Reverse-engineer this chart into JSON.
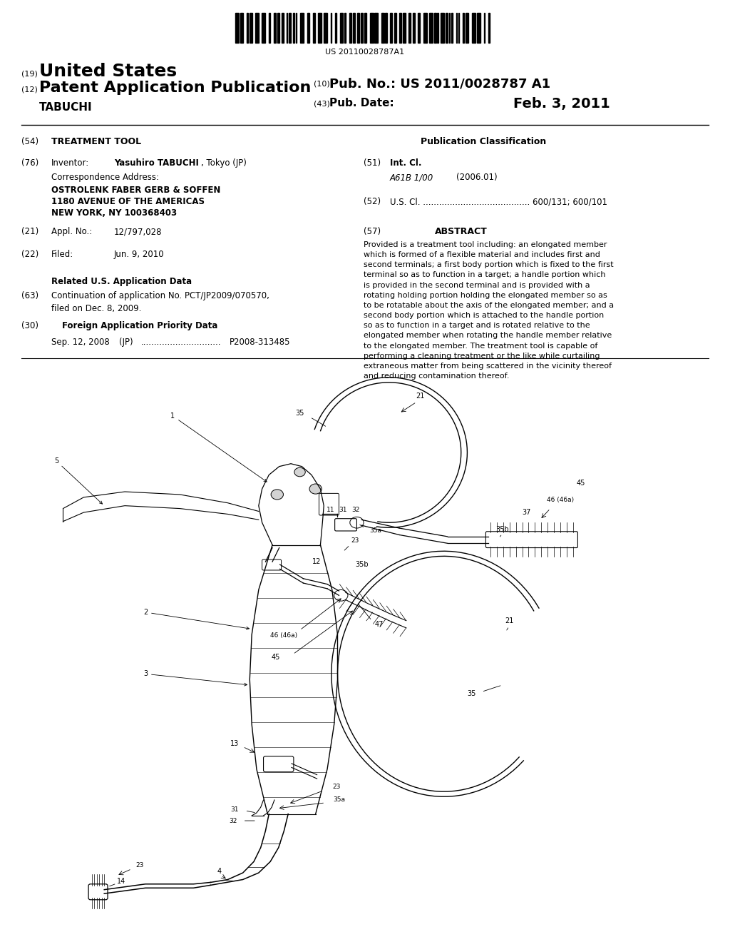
{
  "background_color": "#ffffff",
  "barcode_text": "US 20110028787A1",
  "tag19": "(19)",
  "united_states": "United States",
  "tag12": "(12)",
  "patent_app_pub": "Patent Application Publication",
  "tabuchi": "TABUCHI",
  "tag10": "(10)",
  "pub_no_label": "Pub. No.:",
  "pub_no_value": "US 2011/0028787 A1",
  "tag43": "(43)",
  "pub_date_label": "Pub. Date:",
  "pub_date_value": "Feb. 3, 2011",
  "tag54": "(54)",
  "treatment_tool": "TREATMENT TOOL",
  "pub_class_header": "Publication Classification",
  "tag51": "(51)",
  "int_cl_label": "Int. Cl.",
  "int_cl_code": "A61B 1/00",
  "int_cl_year": "(2006.01)",
  "tag52": "(52)",
  "us_cl_label": "U.S. Cl.",
  "us_cl_dots": "........................................",
  "us_cl_value": "600/131; 600/101",
  "tag57": "(57)",
  "abstract_header": "ABSTRACT",
  "abstract_text": "Provided is a treatment tool including: an elongated member\nwhich is formed of a flexible material and includes first and\nsecond terminals; a first body portion which is fixed to the first\nterminal so as to function in a target; a handle portion which\nis provided in the second terminal and is provided with a\nrotating holding portion holding the elongated member so as\nto be rotatable about the axis of the elongated member; and a\nsecond body portion which is attached to the handle portion\nso as to function in a target and is rotated relative to the\nelongated member when rotating the handle member relative\nto the elongated member. The treatment tool is capable of\nperforming a cleaning treatment or the like while curtailing\nextraneous matter from being scattered in the vicinity thereof\nand reducing contamination thereof.",
  "tag76": "(76)",
  "inventor_label": "Inventor:",
  "inventor_name": "Yasuhiro TABUCHI",
  "inventor_loc": ", Tokyo (JP)",
  "corr_addr_label": "Correspondence Address:",
  "corr_addr_line1": "OSTROLENK FABER GERB & SOFFEN",
  "corr_addr_line2": "1180 AVENUE OF THE AMERICAS",
  "corr_addr_line3": "NEW YORK, NY 100368403",
  "tag21": "(21)",
  "appl_no_label": "Appl. No.:",
  "appl_no_value": "12/797,028",
  "tag22": "(22)",
  "filed_label": "Filed:",
  "filed_value": "Jun. 9, 2010",
  "related_us_data": "Related U.S. Application Data",
  "tag63": "(63)",
  "continuation_text": "Continuation of application No. PCT/JP2009/070570,\nfiled on Dec. 8, 2009.",
  "tag30": "(30)",
  "foreign_app_priority": "Foreign Application Priority Data",
  "priority_date": "Sep. 12, 2008",
  "priority_country": "(JP)",
  "priority_dots": "..............................",
  "priority_number": "P2008-313485"
}
